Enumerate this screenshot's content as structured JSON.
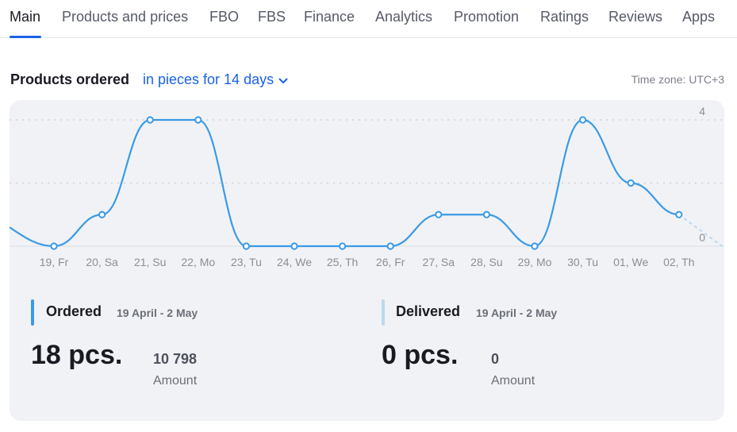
{
  "tabs": [
    "Main",
    "Products and prices",
    "FBO",
    "FBS",
    "Finance",
    "Analytics",
    "Promotion",
    "Ratings",
    "Reviews",
    "Apps"
  ],
  "active_tab": 0,
  "header": {
    "title": "Products ordered",
    "period": "in pieces for 14 days",
    "timezone": "Time zone: UTC+3"
  },
  "colors": {
    "accent": "#1a62e8",
    "line": "#3a9ae6",
    "ordered_bar": "#3a9ae6",
    "delivered_bar": "#b9d9f2"
  },
  "chart_data": {
    "type": "line",
    "categories": [
      "19, Fr",
      "20, Sa",
      "21, Su",
      "22, Mo",
      "23, Tu",
      "24, We",
      "25, Th",
      "26, Fr",
      "27, Sa",
      "28, Su",
      "29, Mo",
      "30, Tu",
      "01, We",
      "02, Th"
    ],
    "series": [
      {
        "values": [
          0,
          1,
          4,
          4,
          0,
          0,
          0,
          0,
          1,
          1,
          0,
          4,
          2,
          1
        ]
      }
    ],
    "ylim": [
      0,
      4
    ],
    "yticks": [
      "0",
      "4"
    ],
    "grid": true
  },
  "metrics": {
    "ordered": {
      "title": "Ordered",
      "period": "19 April - 2 May",
      "value": "18 pcs.",
      "amount": "10 798",
      "amount_label": "Amount"
    },
    "delivered": {
      "title": "Delivered",
      "period": "19 April - 2 May",
      "value": "0 pcs.",
      "amount": "0",
      "amount_label": "Amount"
    }
  }
}
